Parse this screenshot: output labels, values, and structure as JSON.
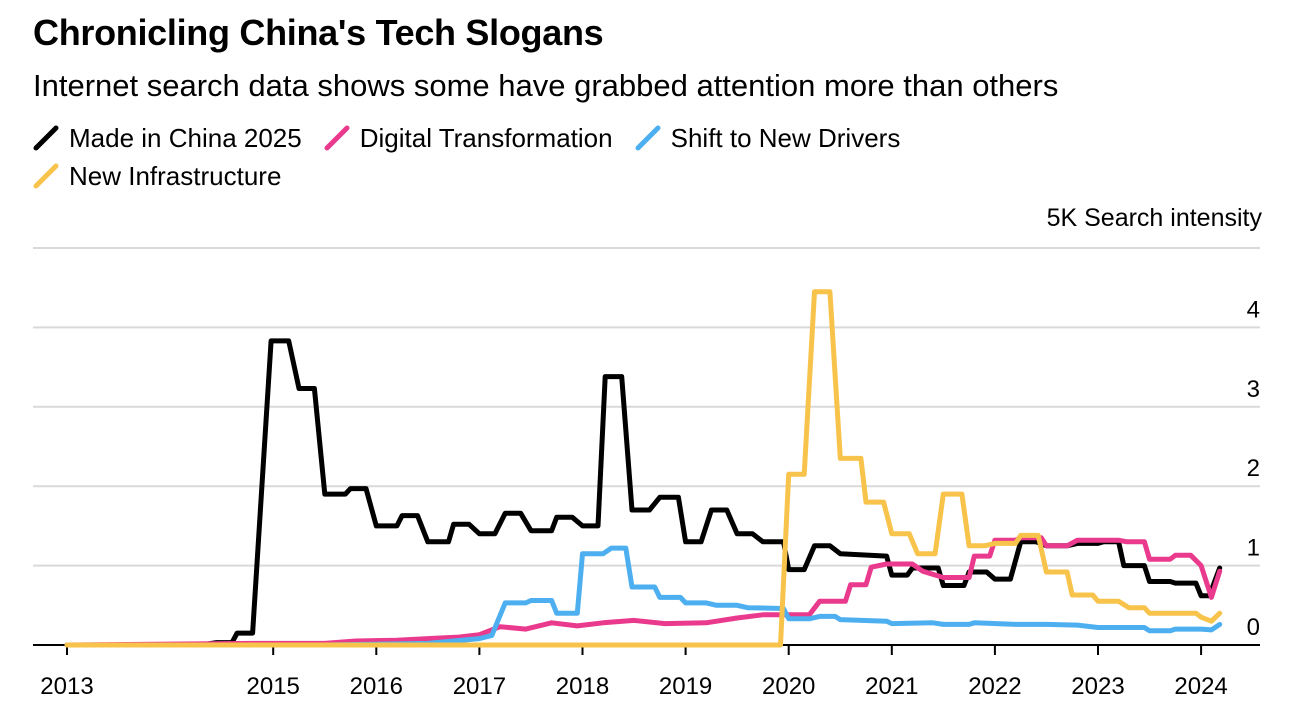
{
  "chart_data": {
    "type": "line",
    "title": "Chronicling China's Tech Slogans",
    "subtitle": "Internet search data shows some have grabbed attention more than others",
    "ylabel": "5K Search intensity",
    "xlabel": "",
    "xlim": [
      2013.0,
      2024.6
    ],
    "ylim": [
      0,
      4.4
    ],
    "x_ticks": [
      2013,
      2015,
      2016,
      2017,
      2018,
      2019,
      2020,
      2021,
      2022,
      2023,
      2024
    ],
    "x_tick_labels": [
      "2013",
      "2015",
      "2016",
      "2017",
      "2018",
      "2019",
      "2020",
      "2021",
      "2022",
      "2023",
      "2024"
    ],
    "y_ticks": [
      0,
      1,
      2,
      3,
      4
    ],
    "y_tick_labels": [
      "0",
      "1",
      "2",
      "3",
      "4"
    ],
    "grid": true,
    "legend_position": "top-left",
    "series": [
      {
        "name": "Made in China 2025",
        "color": "#000000",
        "points": [
          [
            2013.0,
            0
          ],
          [
            2014.3,
            0
          ],
          [
            2014.45,
            0.03
          ],
          [
            2014.6,
            0.03
          ],
          [
            2014.65,
            0.15
          ],
          [
            2014.8,
            0.15
          ],
          [
            2014.98,
            3.83
          ],
          [
            2015.15,
            3.83
          ],
          [
            2015.25,
            3.23
          ],
          [
            2015.4,
            3.23
          ],
          [
            2015.5,
            1.9
          ],
          [
            2015.7,
            1.9
          ],
          [
            2015.75,
            1.97
          ],
          [
            2015.9,
            1.97
          ],
          [
            2016.0,
            1.5
          ],
          [
            2016.2,
            1.5
          ],
          [
            2016.25,
            1.63
          ],
          [
            2016.4,
            1.63
          ],
          [
            2016.5,
            1.3
          ],
          [
            2016.7,
            1.3
          ],
          [
            2016.75,
            1.52
          ],
          [
            2016.9,
            1.52
          ],
          [
            2017.0,
            1.4
          ],
          [
            2017.15,
            1.4
          ],
          [
            2017.25,
            1.66
          ],
          [
            2017.4,
            1.66
          ],
          [
            2017.5,
            1.44
          ],
          [
            2017.7,
            1.44
          ],
          [
            2017.75,
            1.61
          ],
          [
            2017.9,
            1.61
          ],
          [
            2018.0,
            1.5
          ],
          [
            2018.15,
            1.5
          ],
          [
            2018.22,
            3.38
          ],
          [
            2018.38,
            3.38
          ],
          [
            2018.48,
            1.7
          ],
          [
            2018.65,
            1.7
          ],
          [
            2018.75,
            1.86
          ],
          [
            2018.93,
            1.86
          ],
          [
            2019.0,
            1.3
          ],
          [
            2019.15,
            1.3
          ],
          [
            2019.25,
            1.7
          ],
          [
            2019.4,
            1.7
          ],
          [
            2019.5,
            1.4
          ],
          [
            2019.65,
            1.4
          ],
          [
            2019.75,
            1.3
          ],
          [
            2019.95,
            1.3
          ],
          [
            2020.0,
            0.95
          ],
          [
            2020.15,
            0.95
          ],
          [
            2020.25,
            1.25
          ],
          [
            2020.4,
            1.25
          ],
          [
            2020.5,
            1.15
          ],
          [
            2020.95,
            1.12
          ],
          [
            2021.0,
            0.88
          ],
          [
            2021.15,
            0.88
          ],
          [
            2021.2,
            0.97
          ],
          [
            2021.45,
            0.97
          ],
          [
            2021.5,
            0.75
          ],
          [
            2021.7,
            0.75
          ],
          [
            2021.75,
            0.92
          ],
          [
            2021.92,
            0.92
          ],
          [
            2022.0,
            0.83
          ],
          [
            2022.15,
            0.83
          ],
          [
            2022.25,
            1.3
          ],
          [
            2022.4,
            1.3
          ],
          [
            2022.5,
            1.25
          ],
          [
            2022.7,
            1.25
          ],
          [
            2022.8,
            1.28
          ],
          [
            2023.0,
            1.28
          ],
          [
            2023.05,
            1.3
          ],
          [
            2023.2,
            1.3
          ],
          [
            2023.25,
            1.0
          ],
          [
            2023.45,
            1.0
          ],
          [
            2023.5,
            0.8
          ],
          [
            2023.7,
            0.8
          ],
          [
            2023.75,
            0.78
          ],
          [
            2023.95,
            0.78
          ],
          [
            2024.0,
            0.62
          ],
          [
            2024.08,
            0.62
          ],
          [
            2024.18,
            0.97
          ]
        ]
      },
      {
        "name": "Digital Transformation",
        "color": "#EA3A8D",
        "points": [
          [
            2013.0,
            0
          ],
          [
            2014.8,
            0.02
          ],
          [
            2015.5,
            0.02
          ],
          [
            2015.8,
            0.05
          ],
          [
            2016.2,
            0.06
          ],
          [
            2016.5,
            0.08
          ],
          [
            2016.8,
            0.1
          ],
          [
            2017.0,
            0.13
          ],
          [
            2017.2,
            0.23
          ],
          [
            2017.45,
            0.2
          ],
          [
            2017.7,
            0.28
          ],
          [
            2017.95,
            0.24
          ],
          [
            2018.2,
            0.28
          ],
          [
            2018.5,
            0.31
          ],
          [
            2018.8,
            0.27
          ],
          [
            2019.2,
            0.28
          ],
          [
            2019.5,
            0.34
          ],
          [
            2019.75,
            0.38
          ],
          [
            2020.2,
            0.38
          ],
          [
            2020.3,
            0.55
          ],
          [
            2020.55,
            0.55
          ],
          [
            2020.6,
            0.76
          ],
          [
            2020.75,
            0.76
          ],
          [
            2020.8,
            0.98
          ],
          [
            2020.95,
            1.02
          ],
          [
            2021.2,
            1.02
          ],
          [
            2021.3,
            0.93
          ],
          [
            2021.5,
            0.85
          ],
          [
            2021.75,
            0.85
          ],
          [
            2021.8,
            1.12
          ],
          [
            2021.95,
            1.12
          ],
          [
            2022.0,
            1.32
          ],
          [
            2022.2,
            1.32
          ],
          [
            2022.25,
            1.35
          ],
          [
            2022.45,
            1.35
          ],
          [
            2022.5,
            1.25
          ],
          [
            2022.7,
            1.25
          ],
          [
            2022.8,
            1.32
          ],
          [
            2023.2,
            1.32
          ],
          [
            2023.28,
            1.3
          ],
          [
            2023.45,
            1.3
          ],
          [
            2023.5,
            1.08
          ],
          [
            2023.7,
            1.08
          ],
          [
            2023.75,
            1.13
          ],
          [
            2023.9,
            1.13
          ],
          [
            2024.0,
            1.0
          ],
          [
            2024.1,
            0.6
          ],
          [
            2024.18,
            0.93
          ]
        ]
      },
      {
        "name": "Shift to New Drivers",
        "color": "#4DAFF0",
        "points": [
          [
            2013.0,
            0
          ],
          [
            2015.5,
            0
          ],
          [
            2016.5,
            0.02
          ],
          [
            2017.0,
            0.08
          ],
          [
            2017.12,
            0.12
          ],
          [
            2017.25,
            0.53
          ],
          [
            2017.45,
            0.53
          ],
          [
            2017.5,
            0.56
          ],
          [
            2017.7,
            0.56
          ],
          [
            2017.75,
            0.4
          ],
          [
            2017.95,
            0.4
          ],
          [
            2018.0,
            1.15
          ],
          [
            2018.2,
            1.15
          ],
          [
            2018.28,
            1.22
          ],
          [
            2018.42,
            1.22
          ],
          [
            2018.48,
            0.73
          ],
          [
            2018.7,
            0.73
          ],
          [
            2018.75,
            0.6
          ],
          [
            2018.95,
            0.6
          ],
          [
            2019.0,
            0.53
          ],
          [
            2019.2,
            0.53
          ],
          [
            2019.3,
            0.5
          ],
          [
            2019.5,
            0.5
          ],
          [
            2019.6,
            0.47
          ],
          [
            2019.95,
            0.46
          ],
          [
            2020.0,
            0.33
          ],
          [
            2020.2,
            0.33
          ],
          [
            2020.3,
            0.36
          ],
          [
            2020.45,
            0.36
          ],
          [
            2020.5,
            0.32
          ],
          [
            2020.95,
            0.3
          ],
          [
            2021.0,
            0.27
          ],
          [
            2021.4,
            0.28
          ],
          [
            2021.5,
            0.26
          ],
          [
            2021.75,
            0.26
          ],
          [
            2021.8,
            0.28
          ],
          [
            2022.2,
            0.26
          ],
          [
            2022.5,
            0.26
          ],
          [
            2022.8,
            0.25
          ],
          [
            2023.0,
            0.22
          ],
          [
            2023.45,
            0.22
          ],
          [
            2023.5,
            0.18
          ],
          [
            2023.7,
            0.18
          ],
          [
            2023.75,
            0.2
          ],
          [
            2024.0,
            0.2
          ],
          [
            2024.1,
            0.19
          ],
          [
            2024.18,
            0.26
          ]
        ]
      },
      {
        "name": "New Infrastructure",
        "color": "#F7C34A",
        "points": [
          [
            2013.0,
            0
          ],
          [
            2019.92,
            0
          ],
          [
            2020.0,
            2.15
          ],
          [
            2020.15,
            2.15
          ],
          [
            2020.25,
            4.45
          ],
          [
            2020.4,
            4.45
          ],
          [
            2020.5,
            2.35
          ],
          [
            2020.7,
            2.35
          ],
          [
            2020.75,
            1.8
          ],
          [
            2020.92,
            1.8
          ],
          [
            2021.0,
            1.4
          ],
          [
            2021.17,
            1.4
          ],
          [
            2021.25,
            1.15
          ],
          [
            2021.42,
            1.15
          ],
          [
            2021.5,
            1.9
          ],
          [
            2021.68,
            1.9
          ],
          [
            2021.75,
            1.25
          ],
          [
            2021.9,
            1.25
          ],
          [
            2022.0,
            1.28
          ],
          [
            2022.2,
            1.28
          ],
          [
            2022.25,
            1.38
          ],
          [
            2022.42,
            1.38
          ],
          [
            2022.5,
            0.92
          ],
          [
            2022.7,
            0.92
          ],
          [
            2022.75,
            0.63
          ],
          [
            2022.95,
            0.63
          ],
          [
            2023.0,
            0.55
          ],
          [
            2023.2,
            0.55
          ],
          [
            2023.3,
            0.47
          ],
          [
            2023.45,
            0.47
          ],
          [
            2023.5,
            0.4
          ],
          [
            2023.95,
            0.4
          ],
          [
            2024.0,
            0.35
          ],
          [
            2024.1,
            0.3
          ],
          [
            2024.18,
            0.4
          ]
        ]
      }
    ]
  }
}
